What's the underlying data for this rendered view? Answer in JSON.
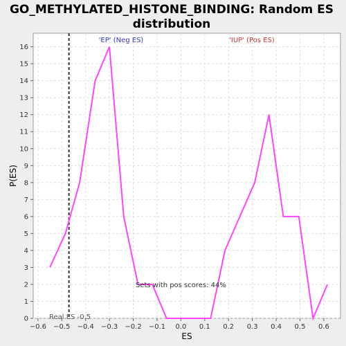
{
  "chart_data": {
    "type": "line",
    "title": [
      "GO_METHYLATED_HISTONE_BINDING: Random ES",
      "distribution"
    ],
    "xlabel": "ES",
    "ylabel": "P(ES)",
    "xlim": [
      -0.62,
      0.67
    ],
    "ylim": [
      0,
      16.8
    ],
    "xticks": [
      -0.6,
      -0.5,
      -0.4,
      -0.3,
      -0.2,
      -0.1,
      0.0,
      0.1,
      0.2,
      0.3,
      0.4,
      0.5,
      0.6
    ],
    "xtick_labels": [
      "−0.6",
      "−0.5",
      "−0.4",
      "−0.3",
      "−0.2",
      "−0.1",
      "0.0",
      "0.1",
      "0.2",
      "0.3",
      "0.4",
      "0.5",
      "0.6"
    ],
    "yticks": [
      0,
      1,
      2,
      3,
      4,
      5,
      6,
      7,
      8,
      9,
      10,
      11,
      12,
      13,
      14,
      15,
      16
    ],
    "grid": true,
    "line_color": "#ff44ff",
    "series": [
      {
        "x": [
          -0.55,
          -0.485,
          -0.425,
          -0.36,
          -0.3,
          -0.24,
          -0.18,
          -0.12,
          -0.06,
          0.0,
          0.065,
          0.125,
          0.185,
          0.31,
          0.37,
          0.43,
          0.495,
          0.555,
          0.615
        ],
        "values": [
          3,
          5,
          8,
          14,
          16,
          6,
          2,
          2,
          0,
          0,
          0,
          0,
          4,
          8,
          12,
          6,
          6,
          0,
          2
        ]
      }
    ],
    "real_es": -0.47,
    "annotations": {
      "neg_label": "'EP' (Neg ES)",
      "neg_color": "#3333cc",
      "pos_label": "'IUP' (Pos ES)",
      "pos_color": "#cc3333",
      "pos_scores": "Sets with pos scores: 44%",
      "real_es_label": "Real ES -0.5"
    }
  }
}
